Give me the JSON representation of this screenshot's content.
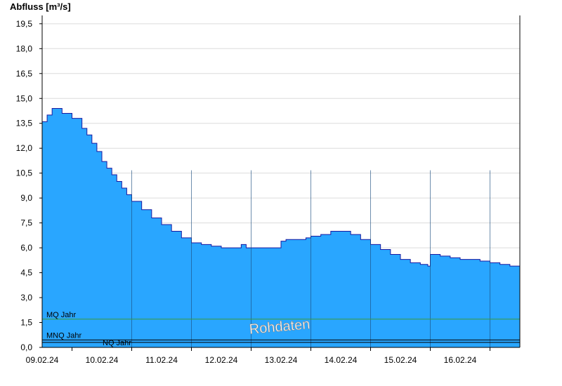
{
  "chart_data": {
    "type": "area",
    "title": "",
    "ylabel": "Abfluss [m³/s]",
    "xlabel": "",
    "ylim": [
      0,
      20
    ],
    "y_ticks": [
      "0,0",
      "1,5",
      "3,0",
      "4,5",
      "6,0",
      "7,5",
      "9,0",
      "10,5",
      "12,0",
      "13,5",
      "15,0",
      "16,5",
      "18,0",
      "19,5"
    ],
    "y_tick_values": [
      0,
      1.5,
      3,
      4.5,
      6,
      7.5,
      9,
      10.5,
      12,
      13.5,
      15,
      16.5,
      18,
      19.5
    ],
    "x_range": [
      "2024-02-08T12:00",
      "2024-02-16T12:00"
    ],
    "x_ticks": [
      "09.02.24",
      "10.02.24",
      "11.02.24",
      "12.02.24",
      "13.02.24",
      "14.02.24",
      "15.02.24",
      "16.02.24"
    ],
    "series": [
      {
        "x": [
          "2024-02-08T12:00",
          "2024-02-08T14:00",
          "2024-02-08T16:00",
          "2024-02-08T18:00",
          "2024-02-08T20:00",
          "2024-02-09T00:00",
          "2024-02-09T04:00",
          "2024-02-09T06:00",
          "2024-02-09T08:00",
          "2024-02-09T10:00",
          "2024-02-09T12:00",
          "2024-02-09T14:00",
          "2024-02-09T16:00",
          "2024-02-09T18:00",
          "2024-02-09T20:00",
          "2024-02-09T22:00",
          "2024-02-10T00:00",
          "2024-02-10T04:00",
          "2024-02-10T08:00",
          "2024-02-10T12:00",
          "2024-02-10T16:00",
          "2024-02-10T20:00",
          "2024-02-11T00:00",
          "2024-02-11T04:00",
          "2024-02-11T08:00",
          "2024-02-11T12:00",
          "2024-02-11T16:00",
          "2024-02-11T20:00",
          "2024-02-11T22:00",
          "2024-02-12T00:00",
          "2024-02-12T06:00",
          "2024-02-12T12:00",
          "2024-02-12T14:00",
          "2024-02-12T18:00",
          "2024-02-12T22:00",
          "2024-02-13T00:00",
          "2024-02-13T04:00",
          "2024-02-13T08:00",
          "2024-02-13T12:00",
          "2024-02-13T16:00",
          "2024-02-13T20:00",
          "2024-02-14T00:00",
          "2024-02-14T04:00",
          "2024-02-14T08:00",
          "2024-02-14T12:00",
          "2024-02-14T16:00",
          "2024-02-14T20:00",
          "2024-02-14T23:00",
          "2024-02-15T00:00",
          "2024-02-15T04:00",
          "2024-02-15T08:00",
          "2024-02-15T12:00",
          "2024-02-15T16:00",
          "2024-02-15T20:00",
          "2024-02-16T00:00",
          "2024-02-16T04:00",
          "2024-02-16T08:00",
          "2024-02-16T12:00"
        ],
        "values": [
          13.6,
          14.0,
          14.4,
          14.4,
          14.1,
          13.8,
          13.2,
          12.8,
          12.3,
          11.8,
          11.2,
          10.8,
          10.4,
          10.0,
          9.6,
          9.2,
          8.8,
          8.3,
          7.8,
          7.4,
          7.0,
          6.6,
          6.3,
          6.2,
          6.1,
          6.0,
          6.0,
          6.2,
          6.0,
          6.0,
          6.0,
          6.4,
          6.5,
          6.5,
          6.6,
          6.7,
          6.8,
          7.0,
          7.0,
          6.8,
          6.5,
          6.2,
          5.9,
          5.6,
          5.3,
          5.1,
          5.0,
          4.9,
          5.6,
          5.5,
          5.4,
          5.3,
          5.3,
          5.2,
          5.1,
          5.0,
          4.9,
          4.7
        ]
      }
    ],
    "reference_lines": [
      {
        "name": "MQ Jahr",
        "value": 1.7,
        "color": "#3a9a3a"
      },
      {
        "name": "MNQ Jahr",
        "value": 0.45,
        "color": "#000000"
      },
      {
        "name": "NQ Jahr",
        "value": 0.3,
        "color": "#000000"
      }
    ],
    "watermark": "Rohdaten",
    "grid": true,
    "fill_color": "#29a6ff",
    "line_color": "#1a1aa0"
  }
}
